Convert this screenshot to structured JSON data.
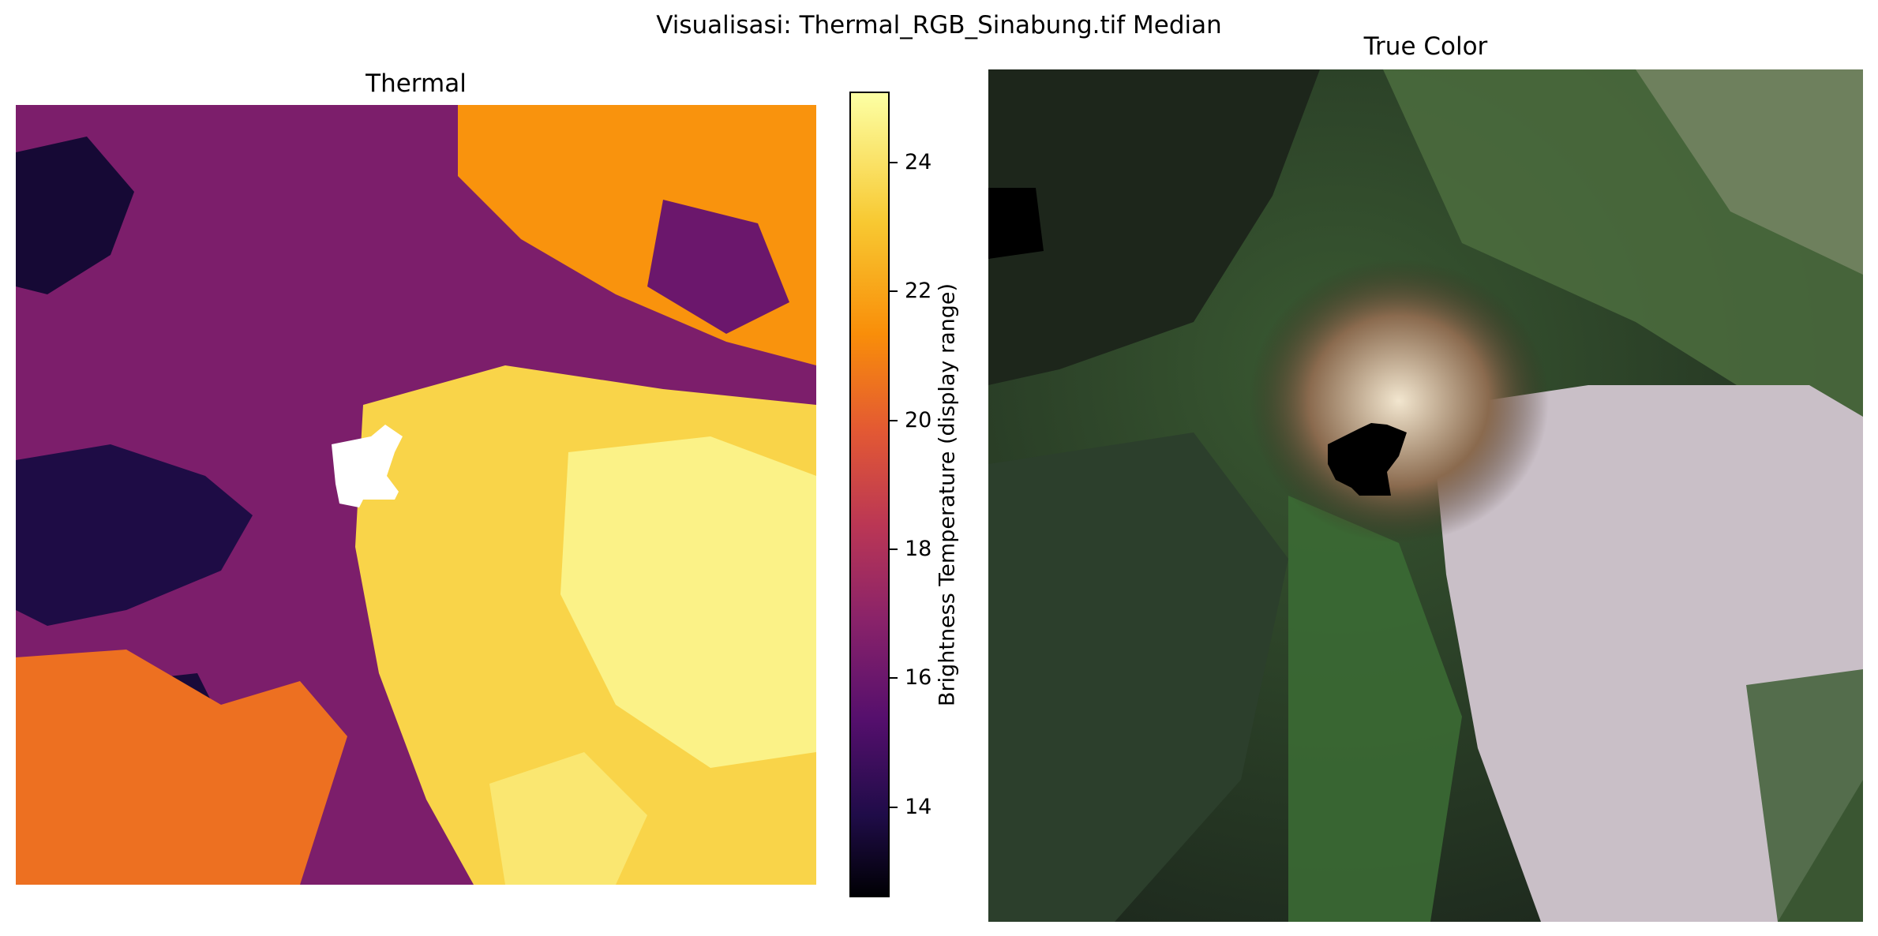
{
  "figure": {
    "title": "Visualisasi: Thermal_RGB_Sinabung.tif Median"
  },
  "chart_data": [
    {
      "type": "heatmap",
      "title": "Thermal",
      "colormap": "inferno",
      "colorbar": {
        "label": "Brightness Temperature (display range)",
        "ticks": [
          14,
          16,
          18,
          20,
          22,
          24
        ],
        "range": [
          12.6,
          25.1
        ]
      },
      "regions": [
        {
          "name": "background-cool",
          "value": 16.5
        },
        {
          "name": "cold-patch-west-1",
          "value": 13.5
        },
        {
          "name": "cold-patch-west-2",
          "value": 13.8
        },
        {
          "name": "cold-patch-southwest",
          "value": 13.6
        },
        {
          "name": "warm-southwest",
          "value": 20.5
        },
        {
          "name": "warm-northeast",
          "value": 21.5
        },
        {
          "name": "hot-east-flow",
          "value": 23.5
        },
        {
          "name": "hot-east-core",
          "value": 24.6
        },
        {
          "name": "hot-south",
          "value": 24.2
        },
        {
          "name": "cool-band-east",
          "value": 16.0
        }
      ],
      "nodata_color": "#ffffff"
    },
    {
      "type": "image",
      "title": "True Color",
      "nodata_color": "#000000"
    }
  ]
}
